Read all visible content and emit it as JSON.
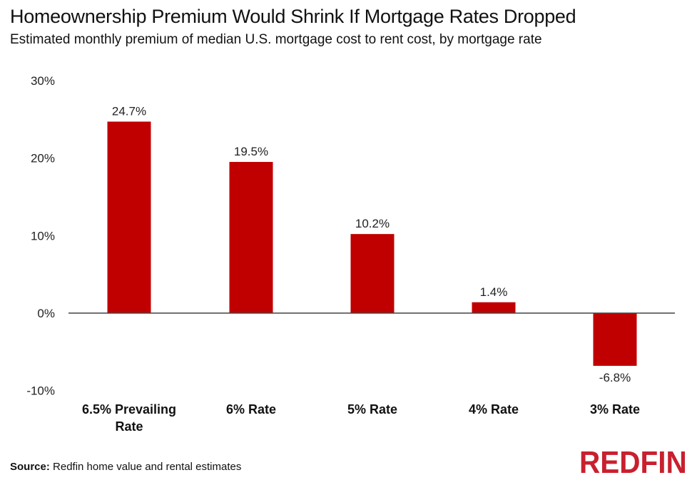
{
  "title": "Homeownership Premium Would Shrink If Mortgage Rates Dropped",
  "subtitle": "Estimated monthly premium of median U.S. mortgage cost to rent cost, by mortgage rate",
  "source_label": "Source:",
  "source_text": "Redfin home value and rental estimates",
  "logo": "REDFIN",
  "colors": {
    "bar": "#c00000",
    "logo": "#c8202f"
  },
  "chart_data": {
    "type": "bar",
    "categories": [
      [
        "6.5% Prevailing",
        "Rate"
      ],
      [
        "6% Rate"
      ],
      [
        "5% Rate"
      ],
      [
        "4% Rate"
      ],
      [
        "3% Rate"
      ]
    ],
    "values": [
      24.7,
      19.5,
      10.2,
      1.4,
      -6.8
    ],
    "data_labels": [
      "24.7%",
      "19.5%",
      "10.2%",
      "1.4%",
      "-6.8%"
    ],
    "yticks": [
      30,
      20,
      10,
      0,
      -10
    ],
    "ytick_labels": [
      "30%",
      "20%",
      "10%",
      "0%",
      "-10%"
    ],
    "ylim": [
      -10,
      30
    ],
    "grid": false,
    "legend": "none"
  }
}
